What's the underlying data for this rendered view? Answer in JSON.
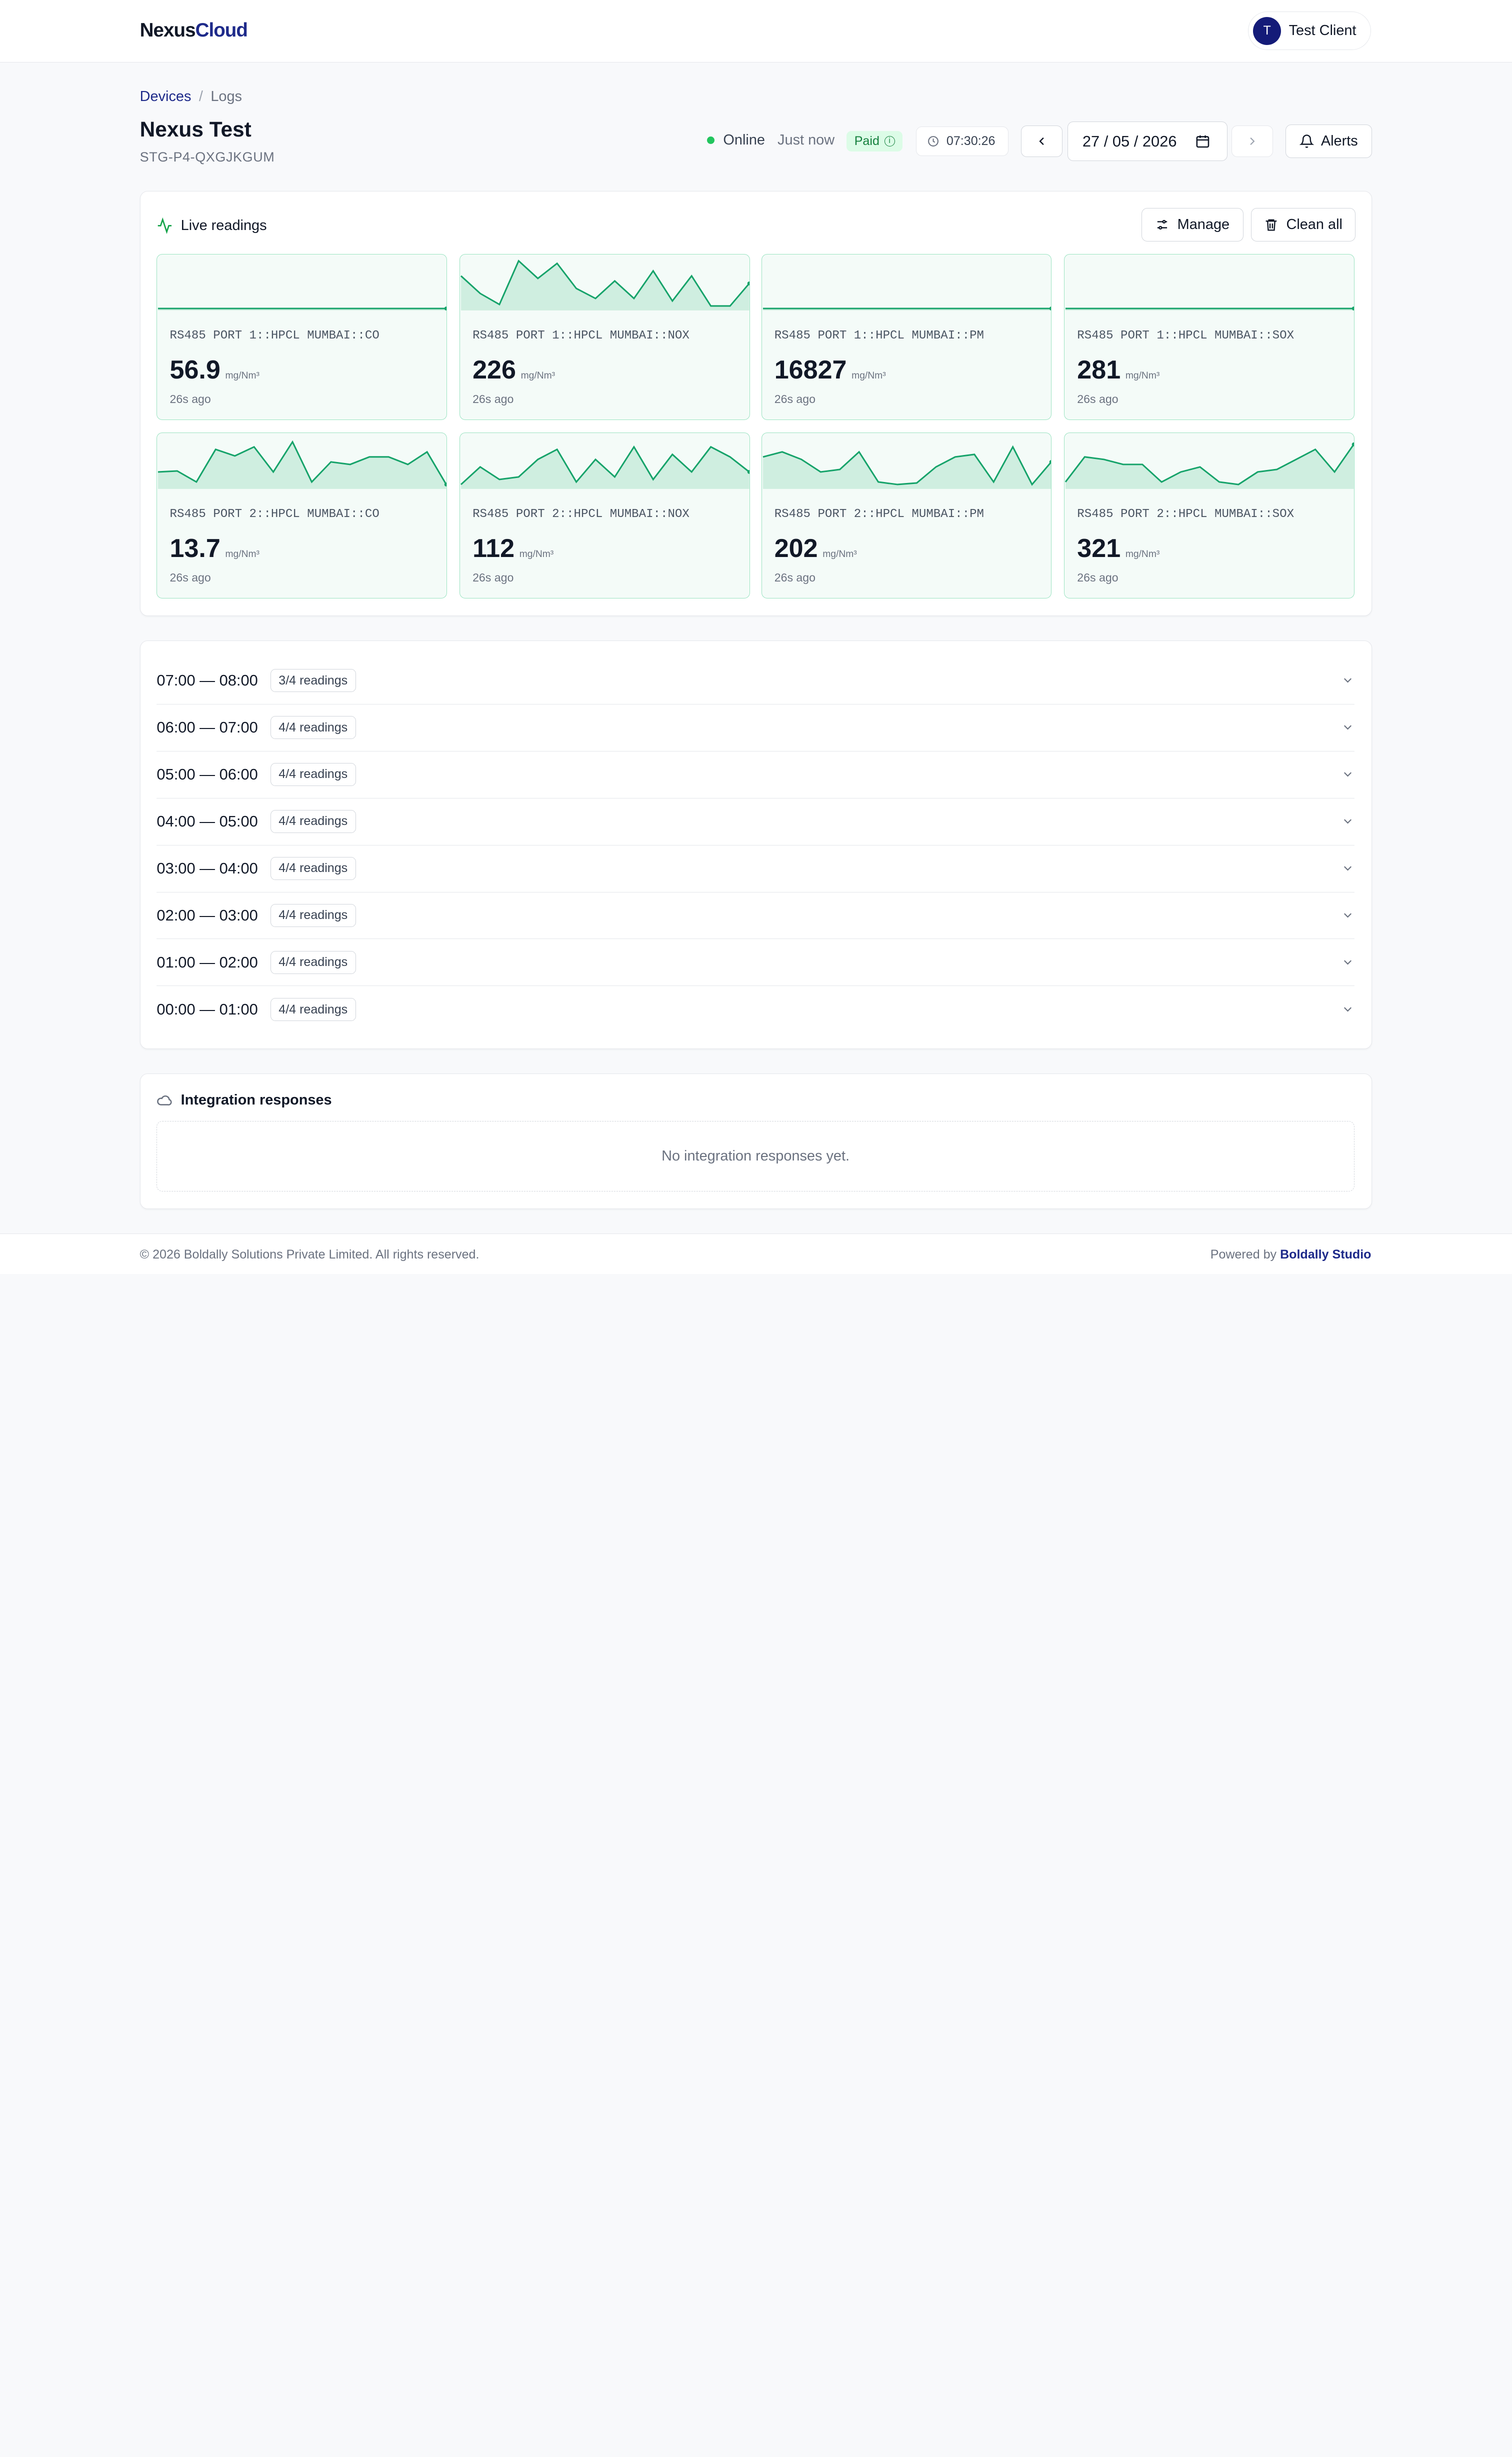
{
  "header": {
    "logo_part1": "Nexus",
    "logo_part2": "Cloud",
    "user_initial": "T",
    "user_name": "Test Client"
  },
  "breadcrumb": {
    "devices": "Devices",
    "separator": "/",
    "current": "Logs"
  },
  "device": {
    "title": "Nexus Test",
    "id": "STG-P4-QXGJKGUM",
    "status": "Online",
    "last_seen": "Just now",
    "plan": "Paid",
    "plan_info_glyph": "i",
    "clock": "07:30:26",
    "date": "27 / 05 / 2026"
  },
  "toolbar": {
    "alerts_label": "Alerts"
  },
  "live": {
    "title": "Live readings",
    "manage_label": "Manage",
    "clean_label": "Clean all",
    "tiles": [
      {
        "label": "RS485 PORT 1::HPCL MUMBAI::CO",
        "value": "56.9",
        "unit": "mg/Nm³",
        "ago": "26s ago",
        "spark": [
          0,
          0,
          0,
          0,
          0,
          0,
          0,
          0,
          0,
          0,
          0,
          0,
          0,
          0,
          0,
          0
        ]
      },
      {
        "label": "RS485 PORT 1::HPCL MUMBAI::NOX",
        "value": "226",
        "unit": "mg/Nm³",
        "ago": "26s ago",
        "spark": [
          0.65,
          0.3,
          0.08,
          0.95,
          0.6,
          0.9,
          0.4,
          0.2,
          0.55,
          0.2,
          0.75,
          0.15,
          0.65,
          0.05,
          0.05,
          0.5
        ]
      },
      {
        "label": "RS485 PORT 1::HPCL MUMBAI::PM",
        "value": "16827",
        "unit": "mg/Nm³",
        "ago": "26s ago",
        "spark": [
          0,
          0,
          0,
          0,
          0,
          0,
          0,
          0,
          0,
          0,
          0,
          0,
          0,
          0,
          0,
          0
        ]
      },
      {
        "label": "RS485 PORT 1::HPCL MUMBAI::SOX",
        "value": "281",
        "unit": "mg/Nm³",
        "ago": "26s ago",
        "spark": [
          0,
          0,
          0,
          0,
          0,
          0,
          0,
          0,
          0,
          0,
          0,
          0,
          0,
          0,
          0,
          0
        ]
      },
      {
        "label": "RS485 PORT 2::HPCL MUMBAI::CO",
        "value": "13.7",
        "unit": "mg/Nm³",
        "ago": "26s ago",
        "spark": [
          0.3,
          0.32,
          0.1,
          0.75,
          0.62,
          0.8,
          0.3,
          0.9,
          0.1,
          0.5,
          0.45,
          0.6,
          0.6,
          0.45,
          0.7,
          0.05
        ]
      },
      {
        "label": "RS485 PORT 2::HPCL MUMBAI::NOX",
        "value": "112",
        "unit": "mg/Nm³",
        "ago": "26s ago",
        "spark": [
          0.05,
          0.4,
          0.15,
          0.2,
          0.55,
          0.75,
          0.1,
          0.55,
          0.2,
          0.8,
          0.15,
          0.65,
          0.3,
          0.8,
          0.6,
          0.3
        ]
      },
      {
        "label": "RS485 PORT 2::HPCL MUMBAI::PM",
        "value": "202",
        "unit": "mg/Nm³",
        "ago": "26s ago",
        "spark": [
          0.6,
          0.7,
          0.55,
          0.3,
          0.35,
          0.7,
          0.1,
          0.05,
          0.08,
          0.4,
          0.6,
          0.65,
          0.1,
          0.8,
          0.05,
          0.5
        ]
      },
      {
        "label": "RS485 PORT 2::HPCL MUMBAI::SOX",
        "value": "321",
        "unit": "mg/Nm³",
        "ago": "26s ago",
        "spark": [
          0.1,
          0.6,
          0.55,
          0.45,
          0.45,
          0.1,
          0.3,
          0.4,
          0.1,
          0.05,
          0.3,
          0.35,
          0.55,
          0.75,
          0.3,
          0.85
        ]
      }
    ]
  },
  "logs": {
    "rows": [
      {
        "time": "07:00 — 08:00",
        "badge": "3/4 readings"
      },
      {
        "time": "06:00 — 07:00",
        "badge": "4/4 readings"
      },
      {
        "time": "05:00 — 06:00",
        "badge": "4/4 readings"
      },
      {
        "time": "04:00 — 05:00",
        "badge": "4/4 readings"
      },
      {
        "time": "03:00 — 04:00",
        "badge": "4/4 readings"
      },
      {
        "time": "02:00 — 03:00",
        "badge": "4/4 readings"
      },
      {
        "time": "01:00 — 02:00",
        "badge": "4/4 readings"
      },
      {
        "time": "00:00 — 01:00",
        "badge": "4/4 readings"
      }
    ]
  },
  "integration": {
    "title": "Integration responses",
    "empty": "No integration responses yet."
  },
  "footer": {
    "copyright": "© 2026 Boldally Solutions Private Limited. All rights reserved.",
    "powered_prefix": "Powered by",
    "powered_brand": "Boldally Studio"
  },
  "colors": {
    "brand": "#1e2a8a",
    "accent_green": "#16a34a",
    "tile_border": "#9be3c2"
  }
}
